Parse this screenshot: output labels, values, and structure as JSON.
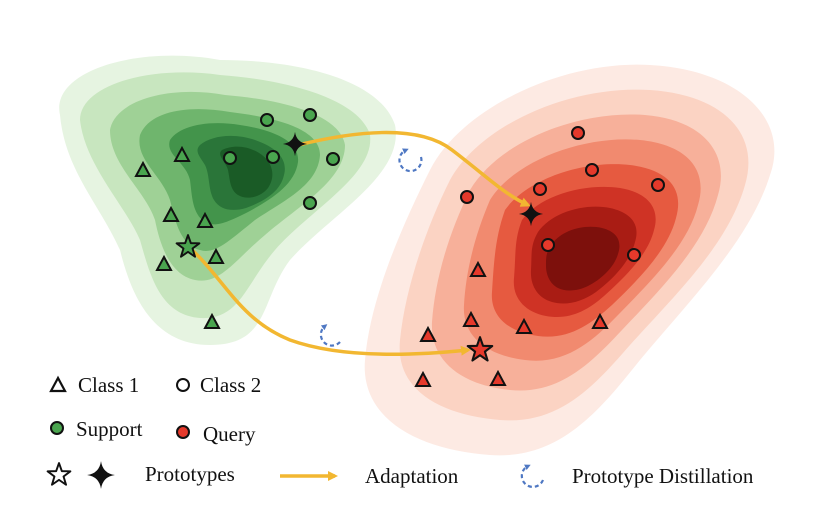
{
  "legend": {
    "class1": "Class 1",
    "class2": "Class 2",
    "support": "Support",
    "query": "Query",
    "prototypes": "Prototypes",
    "adaptation": "Adaptation",
    "distillation": "Prototype Distillation"
  },
  "icons": {
    "class1_marker": "triangle-icon",
    "class2_marker": "circle-icon",
    "prototype_marker_1": "star-icon",
    "prototype_marker_2": "four-point-star-icon",
    "adaptation_marker": "arrow-icon",
    "distillation_marker": "circular-dashed-arrow-icon"
  },
  "colors": {
    "support": "#3f9b46",
    "query": "#e53b2d",
    "adaptation_arrow": "#f2b731",
    "distillation_icon": "#4f78c3",
    "support_density": "#1e6b2f",
    "query_density": "#8e1210"
  }
}
